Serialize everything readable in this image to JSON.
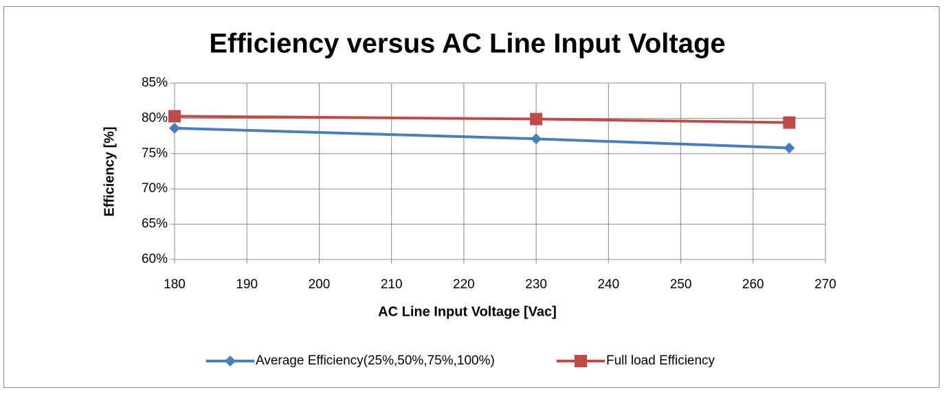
{
  "chart_data": {
    "type": "line",
    "title": "Efficiency versus AC Line Input Voltage",
    "x_label": "AC Line Input Voltage [Vac]",
    "y_label": "Efficiency [%]",
    "x": [
      180,
      230,
      265
    ],
    "series": [
      {
        "name": "Average Efficiency(25%,50%,75%,100%)",
        "color": "#4a7ebb",
        "marker": "diamond",
        "values": [
          78.6,
          77.1,
          75.8
        ]
      },
      {
        "name": "Full load Efficiency",
        "color": "#be4b48",
        "marker": "square",
        "values": [
          80.3,
          79.9,
          79.4
        ]
      }
    ],
    "xlim": [
      180,
      270
    ],
    "xticks": [
      180,
      190,
      200,
      210,
      220,
      230,
      240,
      250,
      260,
      270
    ],
    "ylim": [
      60,
      85
    ],
    "yticks": [
      {
        "value": 60,
        "label": "60%"
      },
      {
        "value": 65,
        "label": "65%"
      },
      {
        "value": 70,
        "label": "70%"
      },
      {
        "value": 75,
        "label": "75%"
      },
      {
        "value": 80,
        "label": "80%"
      },
      {
        "value": 85,
        "label": "85%"
      }
    ],
    "grid": true,
    "legend": "bottom"
  }
}
